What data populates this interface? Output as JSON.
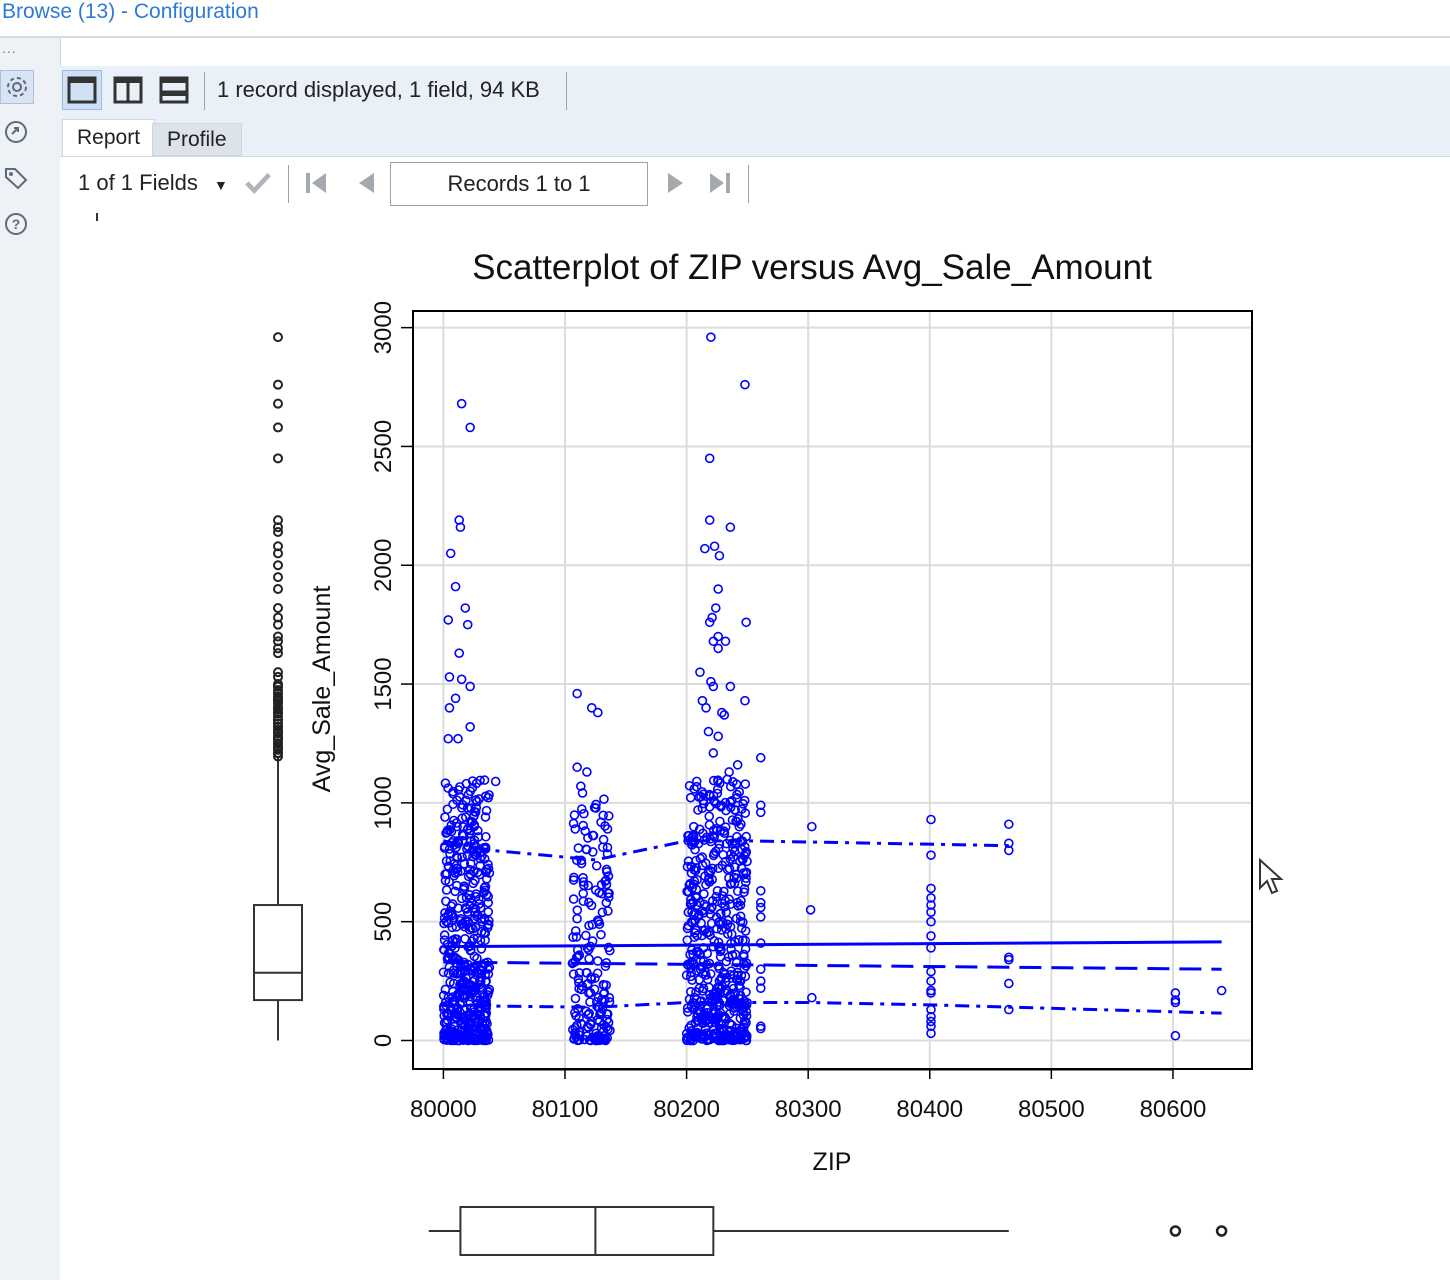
{
  "window": {
    "title": "Browse (13) - Configuration"
  },
  "left_rail": {
    "dots": "...",
    "icons": [
      "gear-icon",
      "navigate-icon",
      "tag-icon",
      "help-icon"
    ]
  },
  "toolbar": {
    "layout_buttons": [
      "single-view-icon",
      "split-vertical-icon",
      "split-horizontal-icon"
    ],
    "info": "1 record displayed, 1 field, 94 KB"
  },
  "tabs": [
    {
      "label": "Report",
      "active": true
    },
    {
      "label": "Profile",
      "active": false
    }
  ],
  "navigation": {
    "field_selector": "1 of 1 Fields",
    "records_label": "Records 1 to 1"
  },
  "chart_data": {
    "type": "scatter",
    "title": "Scatterplot of ZIP versus Avg_Sale_Amount",
    "xlabel": "ZIP",
    "ylabel": "Avg_Sale_Amount",
    "xlim": [
      79975,
      80665
    ],
    "ylim": [
      -120,
      3070
    ],
    "x_ticks": [
      80000,
      80100,
      80200,
      80300,
      80400,
      80500,
      80600
    ],
    "y_ticks": [
      0,
      500,
      1000,
      1500,
      2000,
      2500,
      3000
    ],
    "grid": true,
    "marker_color": "#0000ff",
    "points_outliers": [
      {
        "x": 80004,
        "y": 1770
      },
      {
        "x": 80006,
        "y": 2050
      },
      {
        "x": 80010,
        "y": 1910
      },
      {
        "x": 80013,
        "y": 2190
      },
      {
        "x": 80014,
        "y": 2160
      },
      {
        "x": 80015,
        "y": 2680
      },
      {
        "x": 80018,
        "y": 1820
      },
      {
        "x": 80020,
        "y": 1750
      },
      {
        "x": 80022,
        "y": 2580
      },
      {
        "x": 80013,
        "y": 1630
      },
      {
        "x": 80015,
        "y": 1520
      },
      {
        "x": 80022,
        "y": 1490
      },
      {
        "x": 80022,
        "y": 1320
      },
      {
        "x": 80005,
        "y": 1530
      },
      {
        "x": 80005,
        "y": 1400
      },
      {
        "x": 80010,
        "y": 1440
      },
      {
        "x": 80012,
        "y": 1270
      },
      {
        "x": 80004,
        "y": 1270
      },
      {
        "x": 80110,
        "y": 1460
      },
      {
        "x": 80122,
        "y": 1400
      },
      {
        "x": 80127,
        "y": 1380
      },
      {
        "x": 80110,
        "y": 1150
      },
      {
        "x": 80118,
        "y": 1130
      },
      {
        "x": 80113,
        "y": 1070
      },
      {
        "x": 80220,
        "y": 2960
      },
      {
        "x": 80248,
        "y": 2760
      },
      {
        "x": 80219,
        "y": 2450
      },
      {
        "x": 80219,
        "y": 2190
      },
      {
        "x": 80236,
        "y": 2160
      },
      {
        "x": 80215,
        "y": 2070
      },
      {
        "x": 80223,
        "y": 2080
      },
      {
        "x": 80227,
        "y": 2040
      },
      {
        "x": 80226,
        "y": 1900
      },
      {
        "x": 80224,
        "y": 1820
      },
      {
        "x": 80221,
        "y": 1780
      },
      {
        "x": 80219,
        "y": 1760
      },
      {
        "x": 80226,
        "y": 1700
      },
      {
        "x": 80222,
        "y": 1680
      },
      {
        "x": 80232,
        "y": 1680
      },
      {
        "x": 80226,
        "y": 1650
      },
      {
        "x": 80249,
        "y": 1760
      },
      {
        "x": 80211,
        "y": 1550
      },
      {
        "x": 80220,
        "y": 1510
      },
      {
        "x": 80222,
        "y": 1490
      },
      {
        "x": 80236,
        "y": 1490
      },
      {
        "x": 80248,
        "y": 1430
      },
      {
        "x": 80213,
        "y": 1430
      },
      {
        "x": 80216,
        "y": 1400
      },
      {
        "x": 80229,
        "y": 1380
      },
      {
        "x": 80231,
        "y": 1370
      },
      {
        "x": 80218,
        "y": 1300
      },
      {
        "x": 80226,
        "y": 1280
      },
      {
        "x": 80222,
        "y": 1210
      },
      {
        "x": 80261,
        "y": 1190
      },
      {
        "x": 80242,
        "y": 1160
      },
      {
        "x": 80235,
        "y": 1130
      },
      {
        "x": 80303,
        "y": 900
      },
      {
        "x": 80302,
        "y": 550
      },
      {
        "x": 80303,
        "y": 180
      },
      {
        "x": 80401,
        "y": 930
      },
      {
        "x": 80401,
        "y": 780
      },
      {
        "x": 80401,
        "y": 640
      },
      {
        "x": 80401,
        "y": 600
      },
      {
        "x": 80401,
        "y": 570
      },
      {
        "x": 80401,
        "y": 540
      },
      {
        "x": 80401,
        "y": 500
      },
      {
        "x": 80401,
        "y": 440
      },
      {
        "x": 80401,
        "y": 390
      },
      {
        "x": 80401,
        "y": 290
      },
      {
        "x": 80401,
        "y": 250
      },
      {
        "x": 80401,
        "y": 210
      },
      {
        "x": 80401,
        "y": 200
      },
      {
        "x": 80401,
        "y": 130
      },
      {
        "x": 80401,
        "y": 100
      },
      {
        "x": 80401,
        "y": 80
      },
      {
        "x": 80401,
        "y": 60
      },
      {
        "x": 80401,
        "y": 30
      },
      {
        "x": 80465,
        "y": 910
      },
      {
        "x": 80465,
        "y": 830
      },
      {
        "x": 80465,
        "y": 800
      },
      {
        "x": 80465,
        "y": 350
      },
      {
        "x": 80465,
        "y": 340
      },
      {
        "x": 80465,
        "y": 240
      },
      {
        "x": 80465,
        "y": 130
      },
      {
        "x": 80602,
        "y": 200
      },
      {
        "x": 80602,
        "y": 170
      },
      {
        "x": 80602,
        "y": 160
      },
      {
        "x": 80602,
        "y": 20
      },
      {
        "x": 80640,
        "y": 210
      },
      {
        "x": 80261,
        "y": 990
      },
      {
        "x": 80261,
        "y": 960
      },
      {
        "x": 80261,
        "y": 630
      },
      {
        "x": 80261,
        "y": 580
      },
      {
        "x": 80261,
        "y": 560
      },
      {
        "x": 80261,
        "y": 520
      },
      {
        "x": 80261,
        "y": 410
      },
      {
        "x": 80261,
        "y": 300
      },
      {
        "x": 80261,
        "y": 250
      },
      {
        "x": 80261,
        "y": 220
      },
      {
        "x": 80261,
        "y": 60
      },
      {
        "x": 80261,
        "y": 50
      },
      {
        "x": 80043,
        "y": 1090
      },
      {
        "x": 80135,
        "y": 890
      },
      {
        "x": 80133,
        "y": 670
      },
      {
        "x": 80134,
        "y": 580
      },
      {
        "x": 80133,
        "y": 20
      }
    ],
    "clusters": [
      {
        "x_min": 80000,
        "x_max": 80038,
        "y_max": 1100,
        "n": 520
      },
      {
        "x_min": 80106,
        "x_max": 80137,
        "y_max": 1050,
        "n": 190
      },
      {
        "x_min": 80200,
        "x_max": 80250,
        "y_max": 1100,
        "n": 560
      }
    ],
    "series": [
      {
        "name": "solid",
        "style": "solid",
        "x": [
          80000,
          80640
        ],
        "y": [
          395,
          415
        ]
      },
      {
        "name": "dashed",
        "style": "dash",
        "x": [
          80000,
          80640
        ],
        "y": [
          330,
          300
        ]
      },
      {
        "name": "upper-dashdot",
        "style": "dashdot",
        "x": [
          80000,
          80040,
          80125,
          80200,
          80250,
          80465
        ],
        "y": [
          840,
          800,
          760,
          840,
          840,
          820
        ]
      },
      {
        "name": "lower-dashdot",
        "style": "dashdot",
        "x": [
          80000,
          80040,
          80125,
          80200,
          80300,
          80400,
          80640
        ],
        "y": [
          150,
          145,
          140,
          160,
          160,
          150,
          115
        ]
      }
    ],
    "marginal_y_boxplot": {
      "min": 0,
      "q1": 170,
      "median": 285,
      "q3": 570,
      "whisker_high": 1190,
      "outliers": [
        2960,
        2760,
        2680,
        2580,
        2450,
        2190,
        2160,
        2140,
        2080,
        2050,
        2000,
        1950,
        1900,
        1820,
        1780,
        1750,
        1700,
        1680,
        1650,
        1630,
        1550,
        1530,
        1500,
        1490,
        1460,
        1440,
        1430,
        1400,
        1380,
        1350,
        1320,
        1300,
        1280,
        1270,
        1250,
        1230,
        1210
      ]
    },
    "marginal_x_boxplot": {
      "min": 79988,
      "q1": 80014,
      "median": 80125,
      "q3": 80222,
      "whisker_high": 80465,
      "outliers": [
        80602,
        80640
      ]
    }
  }
}
